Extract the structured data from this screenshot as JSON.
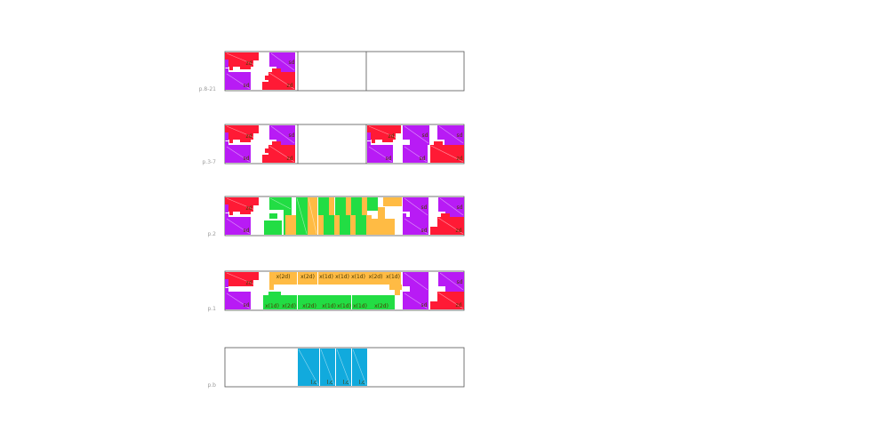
{
  "colors": {
    "red": "#ff1a35",
    "purple": "#b81bf5",
    "orange": "#ffbb44",
    "green": "#22dd44",
    "blue": "#11aadd",
    "frame": "#555555",
    "label": "#9b9b9b"
  },
  "rows": [
    {
      "label": "p.8-21",
      "columns": 3
    },
    {
      "label": "p.3-7",
      "columns": 3
    },
    {
      "label": "p.2",
      "columns": 1
    },
    {
      "label": "p.1",
      "columns": 1
    },
    {
      "label": "p.b",
      "columns": 1
    }
  ],
  "block_labels": {
    "zd": "zd",
    "sd": "sd",
    "x2d": "x(2d)",
    "x1d": "x(1d)",
    "lc": "l.c"
  }
}
